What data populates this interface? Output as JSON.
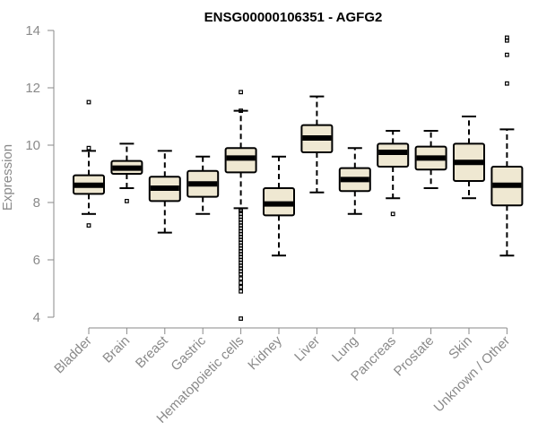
{
  "chart_data": {
    "type": "boxplot",
    "title": "ENSG00000106351 - AGFG2",
    "xlabel": "",
    "ylabel": "Expression",
    "ylim": [
      3.8,
      14.3
    ],
    "yticks": [
      4,
      6,
      8,
      10,
      12,
      14
    ],
    "box_fill": "#efe8d2",
    "categories": [
      "Bladder",
      "Brain",
      "Breast",
      "Gastric",
      "Hematopoietic cells",
      "Kidney",
      "Liver",
      "Lung",
      "Pancreas",
      "Prostate",
      "Skin",
      "Unknown / Other"
    ],
    "boxes": [
      {
        "name": "Bladder",
        "whisker_low": 7.6,
        "q1": 8.3,
        "median": 8.6,
        "q3": 8.95,
        "whisker_high": 9.8,
        "outliers": [
          7.2,
          9.9,
          11.5
        ]
      },
      {
        "name": "Brain",
        "whisker_low": 8.5,
        "q1": 9.0,
        "median": 9.2,
        "q3": 9.45,
        "whisker_high": 10.05,
        "outliers": [
          8.05
        ]
      },
      {
        "name": "Breast",
        "whisker_low": 6.95,
        "q1": 8.05,
        "median": 8.5,
        "q3": 8.9,
        "whisker_high": 9.8,
        "outliers": []
      },
      {
        "name": "Gastric",
        "whisker_low": 7.6,
        "q1": 8.2,
        "median": 8.65,
        "q3": 9.1,
        "whisker_high": 9.6,
        "outliers": []
      },
      {
        "name": "Hematopoietic cells",
        "whisker_low": 7.8,
        "q1": 9.05,
        "median": 9.55,
        "q3": 9.9,
        "whisker_high": 11.2,
        "outliers": [
          11.85,
          11.2,
          7.75,
          7.7,
          7.6,
          7.5,
          7.4,
          7.3,
          7.2,
          7.1,
          7.0,
          6.9,
          6.8,
          6.7,
          6.6,
          6.5,
          6.4,
          6.3,
          6.2,
          6.1,
          6.0,
          5.9,
          5.8,
          5.7,
          5.6,
          5.5,
          5.35,
          5.2,
          5.05,
          4.9,
          3.95
        ]
      },
      {
        "name": "Kidney",
        "whisker_low": 6.15,
        "q1": 7.55,
        "median": 7.95,
        "q3": 8.5,
        "whisker_high": 9.6,
        "outliers": []
      },
      {
        "name": "Liver",
        "whisker_low": 8.35,
        "q1": 9.75,
        "median": 10.25,
        "q3": 10.7,
        "whisker_high": 11.7,
        "outliers": []
      },
      {
        "name": "Lung",
        "whisker_low": 7.6,
        "q1": 8.4,
        "median": 8.8,
        "q3": 9.2,
        "whisker_high": 9.9,
        "outliers": []
      },
      {
        "name": "Pancreas",
        "whisker_low": 8.15,
        "q1": 9.25,
        "median": 9.75,
        "q3": 10.05,
        "whisker_high": 10.5,
        "outliers": [
          7.6
        ]
      },
      {
        "name": "Prostate",
        "whisker_low": 8.5,
        "q1": 9.15,
        "median": 9.55,
        "q3": 9.95,
        "whisker_high": 10.5,
        "outliers": []
      },
      {
        "name": "Skin",
        "whisker_low": 8.15,
        "q1": 8.75,
        "median": 9.4,
        "q3": 10.05,
        "whisker_high": 11.0,
        "outliers": []
      },
      {
        "name": "Unknown / Other",
        "whisker_low": 6.15,
        "q1": 7.9,
        "median": 8.6,
        "q3": 9.25,
        "whisker_high": 10.55,
        "outliers": [
          12.15,
          13.15,
          13.65,
          13.75
        ]
      }
    ],
    "grid": false,
    "legend": "none"
  }
}
